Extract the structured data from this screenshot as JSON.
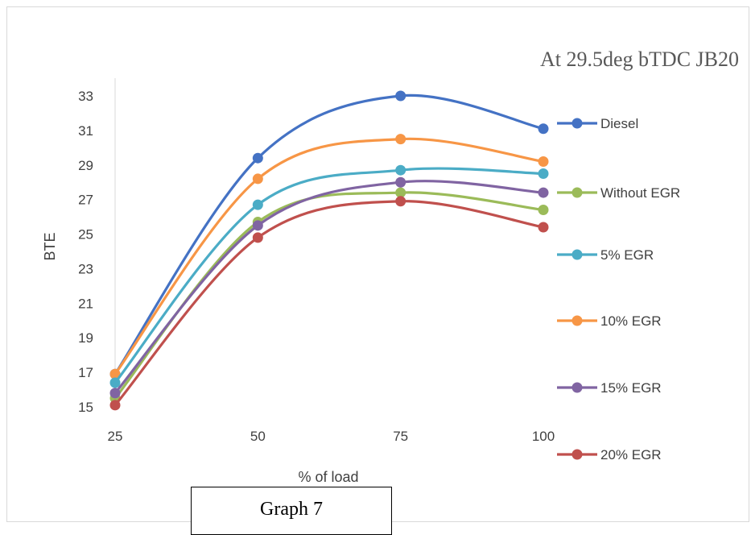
{
  "chart_data": {
    "type": "line",
    "title": "At 29.5deg bTDC JB20",
    "xlabel": "% of load",
    "ylabel": "BTE",
    "categories": [
      "25",
      "50",
      "75",
      "100"
    ],
    "ylim": [
      15,
      33
    ],
    "yticks": [
      "33",
      "31",
      "29",
      "27",
      "25",
      "23",
      "21",
      "19",
      "17",
      "15"
    ],
    "grid": false,
    "legend_position": "right",
    "series": [
      {
        "name": "Diesel",
        "color": "#4472C4",
        "values": [
          16.9,
          29.4,
          33.0,
          31.1
        ]
      },
      {
        "name": "Without EGR",
        "color": "#9BBB59",
        "values": [
          15.5,
          25.7,
          27.4,
          26.4
        ]
      },
      {
        "name": "5% EGR",
        "color": "#4BACC6",
        "values": [
          16.4,
          26.7,
          28.7,
          28.5
        ]
      },
      {
        "name": "10% EGR",
        "color": "#F79646",
        "values": [
          16.9,
          28.2,
          30.5,
          29.2
        ]
      },
      {
        "name": "15% EGR",
        "color": "#8064A2",
        "values": [
          15.8,
          25.5,
          28.0,
          27.4
        ]
      },
      {
        "name": "20% EGR",
        "color": "#C0504D",
        "values": [
          15.1,
          24.8,
          26.9,
          25.4
        ]
      }
    ]
  },
  "caption": "Graph 7"
}
